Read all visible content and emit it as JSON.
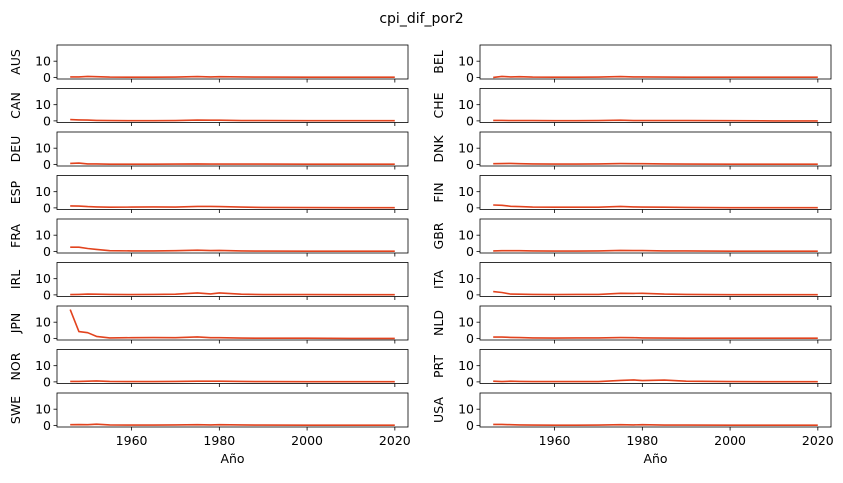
{
  "chart_data": {
    "type": "line",
    "title": "cpi_dif_por2",
    "xlabel": "Año",
    "x": [
      1946,
      1948,
      1950,
      1952,
      1955,
      1960,
      1965,
      1970,
      1975,
      1978,
      1980,
      1985,
      1990,
      2000,
      2010,
      2020
    ],
    "xticks": [
      1960,
      1980,
      2000,
      2020
    ],
    "xlim": [
      1943,
      2023
    ],
    "yticks": [
      0,
      10
    ],
    "ylim": [
      -1,
      20
    ],
    "grid": false,
    "series_color": "#e2431e",
    "panels": [
      {
        "name": "AUS",
        "values": [
          0.3,
          0.3,
          0.6,
          0.4,
          0.2,
          0.1,
          0.1,
          0.2,
          0.5,
          0.3,
          0.4,
          0.3,
          0.2,
          0.1,
          0.1,
          0.1
        ]
      },
      {
        "name": "BEL",
        "values": [
          0.0,
          0.6,
          0.3,
          0.4,
          0.2,
          0.1,
          0.1,
          0.2,
          0.5,
          0.3,
          0.3,
          0.2,
          0.1,
          0.1,
          0.1,
          0.1
        ]
      },
      {
        "name": "CAN",
        "values": [
          0.8,
          0.6,
          0.5,
          0.3,
          0.2,
          0.1,
          0.1,
          0.2,
          0.5,
          0.4,
          0.4,
          0.2,
          0.2,
          0.1,
          0.1,
          0.1
        ]
      },
      {
        "name": "CHE",
        "values": [
          0.3,
          0.3,
          0.2,
          0.2,
          0.2,
          0.1,
          0.1,
          0.2,
          0.4,
          0.2,
          0.2,
          0.2,
          0.2,
          0.1,
          0.0,
          0.0
        ]
      },
      {
        "name": "DEU",
        "values": [
          0.6,
          0.8,
          0.3,
          0.3,
          0.1,
          0.1,
          0.1,
          0.2,
          0.3,
          0.2,
          0.2,
          0.2,
          0.2,
          0.1,
          0.1,
          0.1
        ]
      },
      {
        "name": "DNK",
        "values": [
          0.4,
          0.5,
          0.6,
          0.4,
          0.3,
          0.2,
          0.2,
          0.3,
          0.5,
          0.4,
          0.4,
          0.3,
          0.2,
          0.1,
          0.1,
          0.1
        ]
      },
      {
        "name": "ESP",
        "values": [
          1.2,
          1.1,
          0.8,
          0.6,
          0.4,
          0.5,
          0.6,
          0.5,
          0.9,
          0.9,
          0.8,
          0.5,
          0.3,
          0.2,
          0.1,
          0.1
        ]
      },
      {
        "name": "FIN",
        "values": [
          1.8,
          1.6,
          1.0,
          0.8,
          0.5,
          0.4,
          0.4,
          0.4,
          0.9,
          0.6,
          0.5,
          0.4,
          0.3,
          0.1,
          0.1,
          0.1
        ]
      },
      {
        "name": "FRA",
        "values": [
          2.6,
          2.6,
          1.8,
          1.2,
          0.4,
          0.3,
          0.3,
          0.4,
          0.7,
          0.5,
          0.6,
          0.3,
          0.2,
          0.1,
          0.1,
          0.1
        ]
      },
      {
        "name": "GBR",
        "values": [
          0.3,
          0.4,
          0.4,
          0.4,
          0.3,
          0.2,
          0.2,
          0.3,
          0.6,
          0.5,
          0.5,
          0.3,
          0.3,
          0.1,
          0.1,
          0.1
        ]
      },
      {
        "name": "IRL",
        "values": [
          0.2,
          0.3,
          0.5,
          0.4,
          0.3,
          0.2,
          0.3,
          0.4,
          1.2,
          0.6,
          1.2,
          0.4,
          0.2,
          0.2,
          0.1,
          0.1
        ]
      },
      {
        "name": "ITA",
        "values": [
          2.0,
          1.5,
          0.5,
          0.4,
          0.3,
          0.2,
          0.3,
          0.3,
          1.0,
          0.9,
          1.0,
          0.5,
          0.3,
          0.1,
          0.1,
          0.1
        ]
      },
      {
        "name": "JPN",
        "values": [
          17.8,
          4.2,
          3.5,
          1.2,
          0.3,
          0.4,
          0.5,
          0.4,
          0.9,
          0.4,
          0.4,
          0.2,
          0.1,
          0.1,
          0.0,
          0.0
        ]
      },
      {
        "name": "NLD",
        "values": [
          0.8,
          0.8,
          0.6,
          0.5,
          0.3,
          0.2,
          0.3,
          0.3,
          0.5,
          0.4,
          0.3,
          0.2,
          0.1,
          0.1,
          0.1,
          0.1
        ]
      },
      {
        "name": "NOR",
        "values": [
          0.3,
          0.3,
          0.4,
          0.6,
          0.3,
          0.2,
          0.2,
          0.3,
          0.4,
          0.4,
          0.4,
          0.3,
          0.2,
          0.1,
          0.1,
          0.1
        ]
      },
      {
        "name": "PRT",
        "values": [
          0.4,
          0.2,
          0.4,
          0.3,
          0.2,
          0.2,
          0.2,
          0.2,
          0.9,
          1.2,
          0.8,
          1.1,
          0.4,
          0.2,
          0.1,
          0.1
        ]
      },
      {
        "name": "SWE",
        "values": [
          0.4,
          0.5,
          0.4,
          0.7,
          0.3,
          0.2,
          0.2,
          0.3,
          0.4,
          0.3,
          0.4,
          0.3,
          0.2,
          0.1,
          0.1,
          0.1
        ]
      },
      {
        "name": "USA",
        "values": [
          0.6,
          0.6,
          0.4,
          0.3,
          0.2,
          0.1,
          0.1,
          0.2,
          0.4,
          0.3,
          0.4,
          0.2,
          0.2,
          0.1,
          0.1,
          0.1
        ]
      }
    ]
  }
}
